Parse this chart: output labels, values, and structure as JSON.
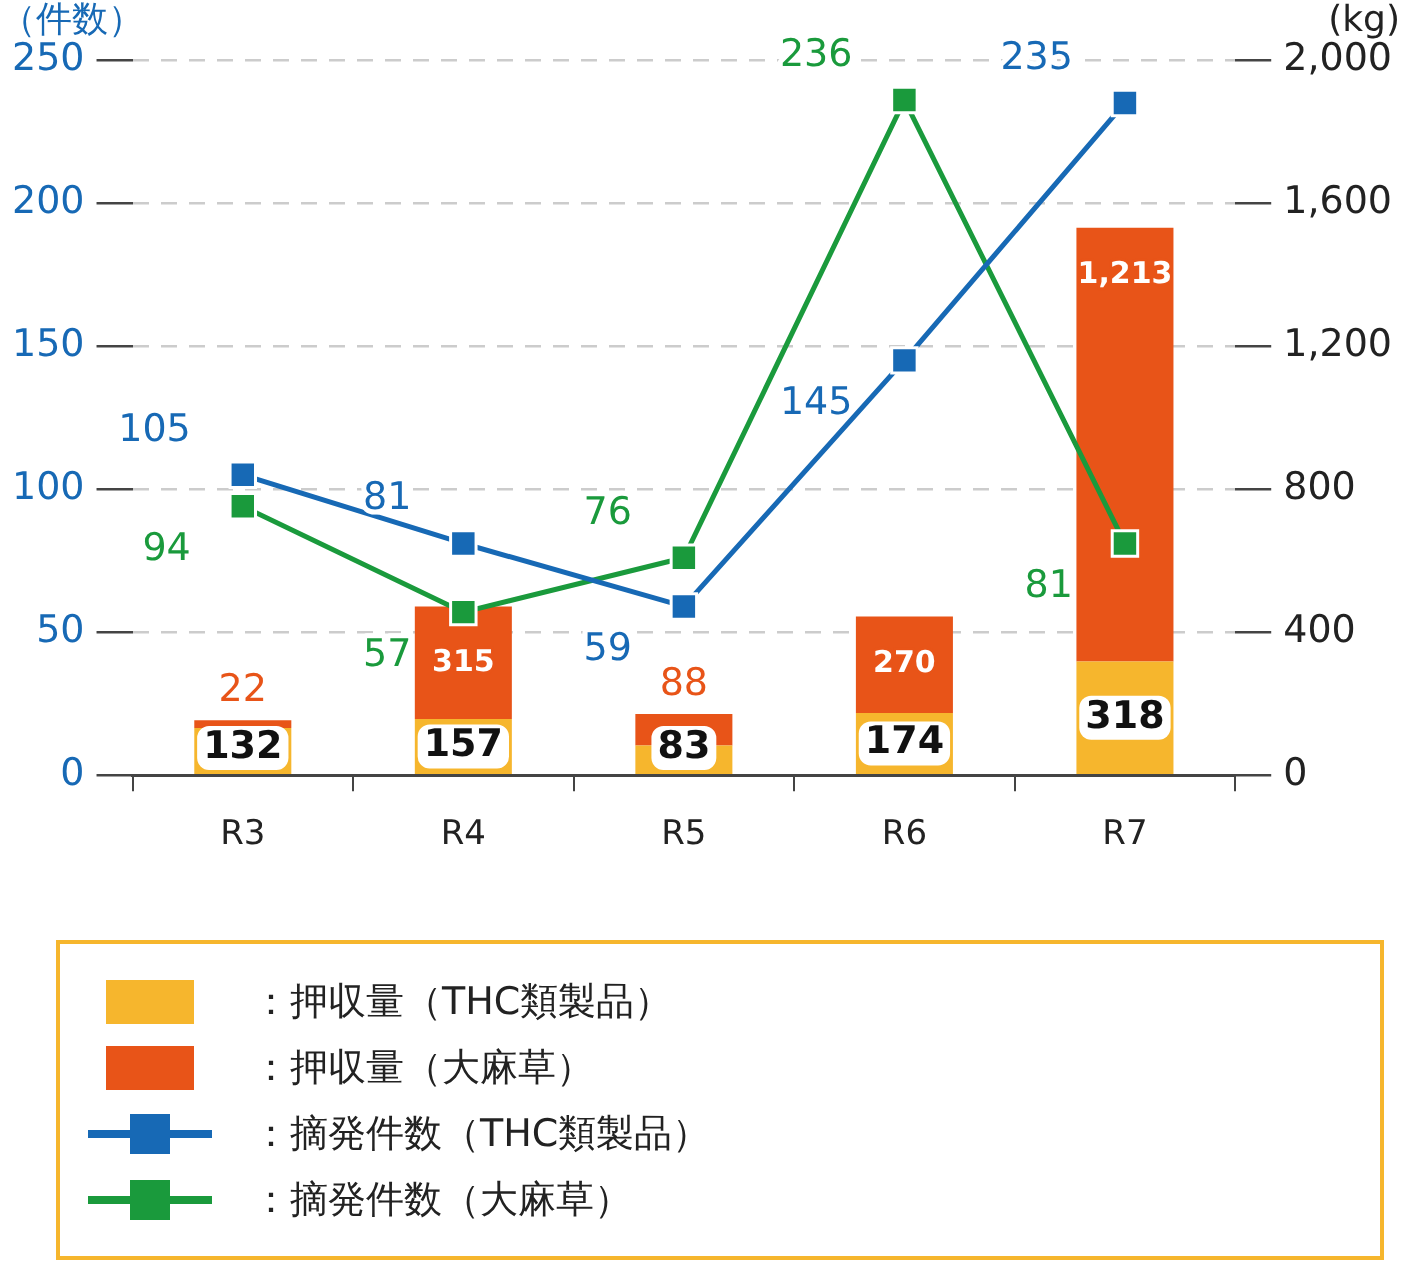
{
  "chart_data": {
    "type": "bar",
    "ylabel": "（件数）",
    "y2label": "(kg)",
    "categories": [
      "R3",
      "R4",
      "R5",
      "R6",
      "R7"
    ],
    "series": [
      {
        "name": "：押収量（THC類製品）",
        "axis": "y2",
        "color": "#f6b62d",
        "values": [
          132,
          157,
          83,
          174,
          318
        ],
        "value_labels": [
          "132",
          "157",
          "83",
          "174",
          "318"
        ]
      },
      {
        "name": "：押収量（大麻草）",
        "axis": "y2",
        "color": "#e85418",
        "values": [
          22,
          315,
          88,
          270,
          1213
        ],
        "value_labels": [
          "22",
          "315",
          "88",
          "270",
          "1,213"
        ]
      },
      {
        "name": "：摘発件数（THC類製品）",
        "type": "line",
        "color": "#1769b5",
        "values": [
          105,
          81,
          59,
          145,
          235
        ],
        "value_labels": [
          "105",
          "81",
          "59",
          "145",
          "235"
        ]
      },
      {
        "name": "：摘発件数（大麻草）",
        "type": "line",
        "color": "#1a9a3c",
        "values": [
          94,
          57,
          76,
          236,
          81
        ],
        "value_labels": [
          "94",
          "57",
          "76",
          "236",
          "81"
        ]
      }
    ],
    "stacked": true,
    "ylim": [
      0,
      250
    ],
    "yticks": [
      0,
      50,
      100,
      150,
      200,
      250
    ],
    "y2lim": [
      0,
      2000
    ],
    "y2ticks": [
      0,
      {
        "value": 400,
        "label": "400"
      },
      {
        "value": 800,
        "label": "800"
      },
      {
        "value": 1200,
        "label": "1,200"
      },
      {
        "value": 1600,
        "label": "1,600"
      },
      {
        "value": 2000,
        "label": "2,000"
      }
    ],
    "grid": "y",
    "legend": "bottom",
    "marker": "square",
    "line_style": "solid"
  }
}
